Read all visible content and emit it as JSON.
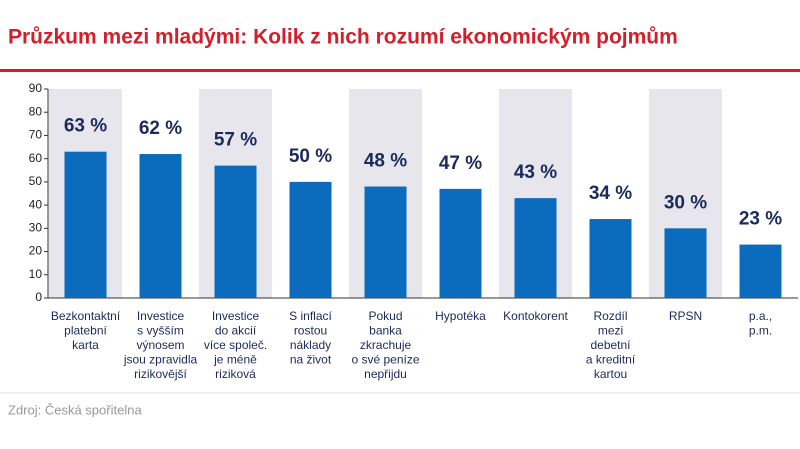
{
  "chart_data": {
    "type": "bar",
    "title": "Průzkum mezi mladými: Kolik z nich rozumí ekonomickým pojmům",
    "categories": [
      [
        "Bezkontaktní",
        "platební",
        "karta"
      ],
      [
        "Investice",
        "s vyšším",
        "výnosem",
        "jsou zpravidla",
        "rizikovější"
      ],
      [
        "Investice",
        "do akcií",
        "více společ.",
        "je méně",
        "riziková"
      ],
      [
        "S inflací",
        "rostou",
        "náklady",
        "na život"
      ],
      [
        "Pokud",
        "banka",
        "zkrachuje",
        "o své peníze",
        "nepřijdu"
      ],
      [
        "Hypotéka"
      ],
      [
        "Kontokorent"
      ],
      [
        "Rozdíl",
        "mezi",
        "debetní",
        "a kreditní",
        "kartou"
      ],
      [
        "RPSN"
      ],
      [
        "p.a.,",
        "p.m."
      ]
    ],
    "values": [
      63,
      62,
      57,
      50,
      48,
      47,
      43,
      34,
      30,
      23
    ],
    "value_labels": [
      "63 %",
      "62 %",
      "57 %",
      "50 %",
      "48 %",
      "47 %",
      "43 %",
      "34 %",
      "30 %",
      "23 %"
    ],
    "color": "#0b6bbd",
    "ylim": [
      0,
      90
    ],
    "yticks": [
      0,
      10,
      20,
      30,
      40,
      50,
      60,
      70,
      80,
      90
    ],
    "source": "Zdroj: Česká spořitelna"
  }
}
